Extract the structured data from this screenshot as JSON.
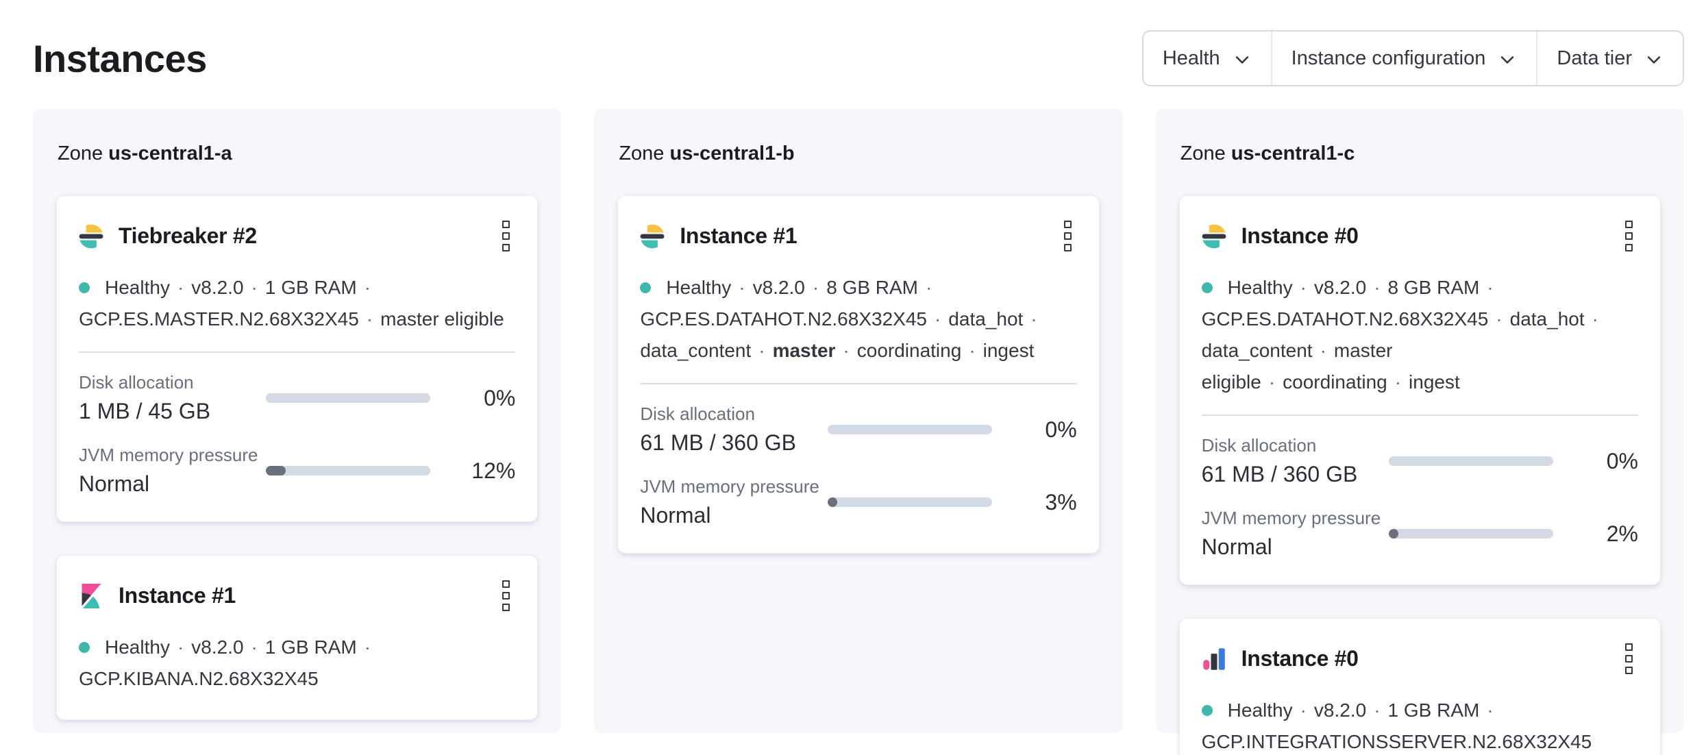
{
  "sep": "·",
  "page": {
    "title": "Instances"
  },
  "filters": {
    "items": [
      {
        "label": "Health"
      },
      {
        "label": "Instance configuration"
      },
      {
        "label": "Data tier"
      }
    ]
  },
  "colors": {
    "health_dot": "#3eb8ab",
    "elasticsearch_yellow": "#f6c242",
    "brand_dark": "#343741",
    "brand_teal": "#3ebeb0",
    "kibana_pink": "#f04e98",
    "integrations_blue": "#3b7cd9",
    "progress_track": "#d3dae6",
    "progress_fill": "#69707d",
    "panel_background": "#f5f7fb"
  },
  "zones": [
    {
      "prefix": "Zone",
      "name": "us-central1-a",
      "cards": [
        {
          "product": "elasticsearch",
          "title": "Tiebreaker #2",
          "status": [
            "Healthy",
            "v8.2.0",
            "1 GB RAM",
            "GCP.ES.MASTER.N2.68X32X45",
            "master eligible"
          ],
          "metrics": [
            {
              "label": "Disk allocation",
              "value": "1 MB / 45 GB",
              "percent": 0,
              "percent_label": "0%"
            },
            {
              "label": "JVM memory pressure",
              "value": "Normal",
              "percent": 12,
              "percent_label": "12%"
            }
          ]
        },
        {
          "product": "kibana",
          "title": "Instance #1",
          "status": [
            "Healthy",
            "v8.2.0",
            "1 GB RAM",
            "GCP.KIBANA.N2.68X32X45"
          ]
        }
      ]
    },
    {
      "prefix": "Zone",
      "name": "us-central1-b",
      "cards": [
        {
          "product": "elasticsearch",
          "title": "Instance #1",
          "status": [
            "Healthy",
            "v8.2.0",
            "8 GB RAM",
            "GCP.ES.DATAHOT.N2.68X32X45",
            "data_hot",
            "data_content",
            "master",
            "coordinating",
            "ingest"
          ],
          "metrics": [
            {
              "label": "Disk allocation",
              "value": "61 MB / 360 GB",
              "percent": 0,
              "percent_label": "0%"
            },
            {
              "label": "JVM memory pressure",
              "value": "Normal",
              "percent": 3,
              "percent_label": "3%"
            }
          ]
        }
      ]
    },
    {
      "prefix": "Zone",
      "name": "us-central1-c",
      "cards": [
        {
          "product": "elasticsearch",
          "title": "Instance #0",
          "status": [
            "Healthy",
            "v8.2.0",
            "8 GB RAM",
            "GCP.ES.DATAHOT.N2.68X32X45",
            "data_hot",
            "data_content",
            "master eligible",
            "coordinating",
            "ingest"
          ],
          "metrics": [
            {
              "label": "Disk allocation",
              "value": "61 MB / 360 GB",
              "percent": 0,
              "percent_label": "0%"
            },
            {
              "label": "JVM memory pressure",
              "value": "Normal",
              "percent": 2,
              "percent_label": "2%"
            }
          ]
        },
        {
          "product": "integrations_server",
          "title": "Instance #0",
          "status": [
            "Healthy",
            "v8.2.0",
            "1 GB RAM",
            "GCP.INTEGRATIONSSERVER.N2.68X32X45"
          ]
        }
      ]
    }
  ]
}
